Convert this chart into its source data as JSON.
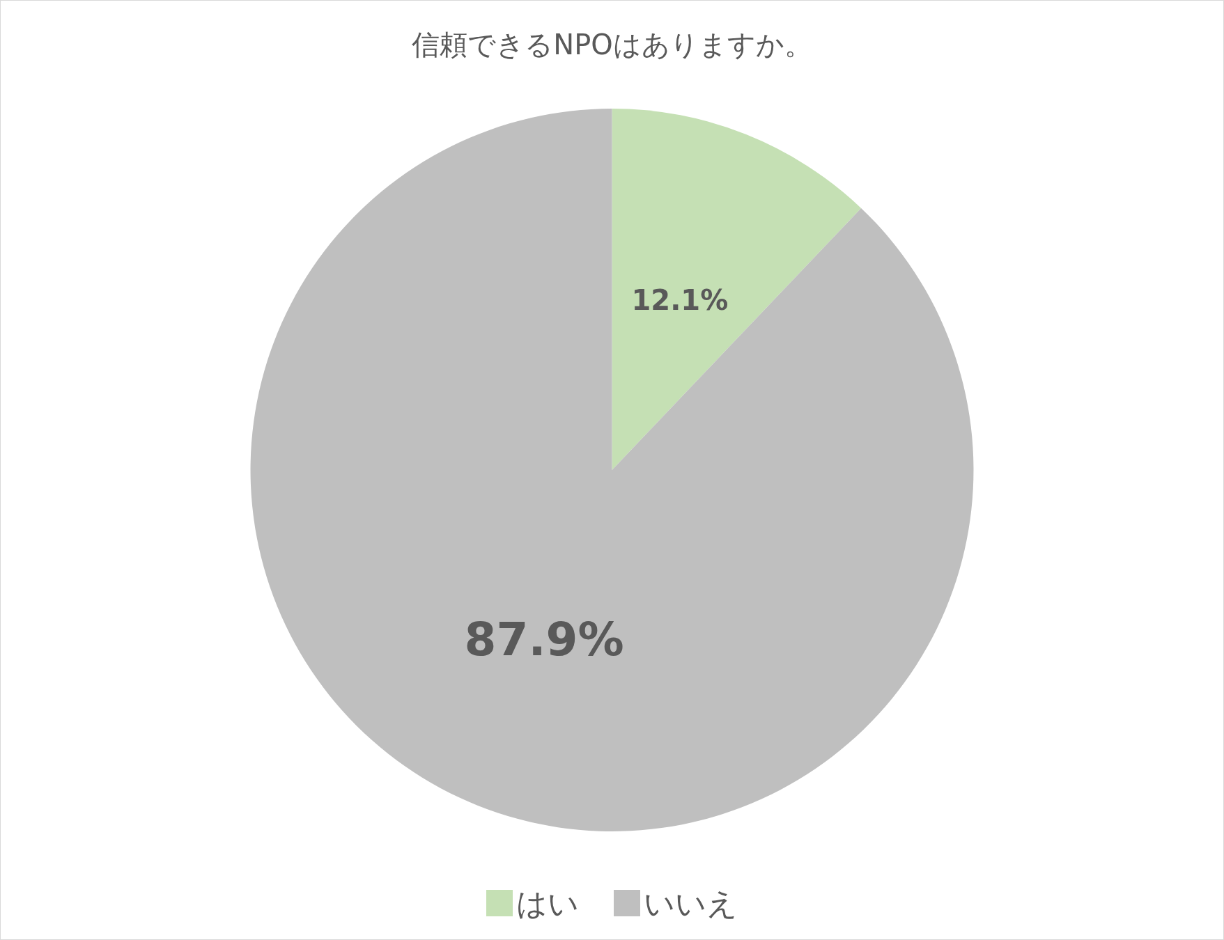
{
  "chart_data": {
    "type": "pie",
    "title": "信頼できるNPOはありますか。",
    "categories": [
      "はい",
      "いいえ"
    ],
    "values": [
      12.1,
      87.9
    ],
    "colors": [
      "#c5e0b4",
      "#bfbfbf"
    ],
    "value_labels": [
      "12.1%",
      "87.9%"
    ],
    "legend": "bottom"
  }
}
